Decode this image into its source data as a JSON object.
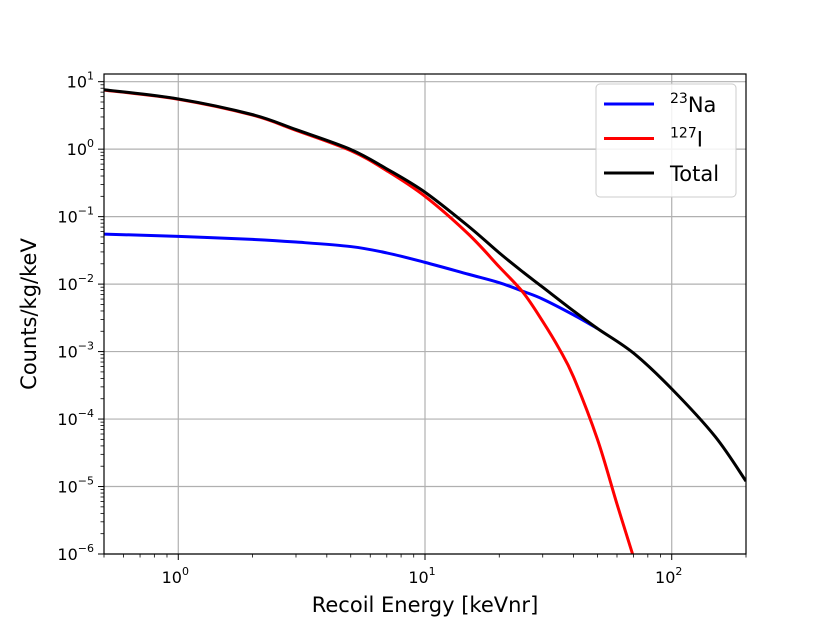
{
  "chart_data": {
    "type": "line",
    "title": "",
    "xlabel": "Recoil Energy [keVnr]",
    "ylabel": "Counts/kg/keV",
    "xscale": "log",
    "yscale": "log",
    "xlim": [
      0.5,
      200
    ],
    "ylim": [
      1e-06,
      13
    ],
    "grid": true,
    "legend_position": "top-right",
    "x_major_ticks": [
      {
        "value": 1,
        "base": "10",
        "exp": "0"
      },
      {
        "value": 10,
        "base": "10",
        "exp": "1"
      },
      {
        "value": 100,
        "base": "10",
        "exp": "2"
      }
    ],
    "y_major_ticks": [
      {
        "value": 10,
        "base": "10",
        "exp": "1"
      },
      {
        "value": 1,
        "base": "10",
        "exp": "0"
      },
      {
        "value": 0.1,
        "base": "10",
        "exp": "−1"
      },
      {
        "value": 0.01,
        "base": "10",
        "exp": "−2"
      },
      {
        "value": 0.001,
        "base": "10",
        "exp": "−3"
      },
      {
        "value": 0.0001,
        "base": "10",
        "exp": "−4"
      },
      {
        "value": 1e-05,
        "base": "10",
        "exp": "−5"
      },
      {
        "value": 1e-06,
        "base": "10",
        "exp": "−6"
      }
    ],
    "series": [
      {
        "key": "na",
        "name_sup": "23",
        "name_main": "Na",
        "color": "#0000ff",
        "x": [
          0.5,
          1,
          2,
          3,
          5,
          7,
          10,
          15,
          20,
          25,
          30,
          40,
          50
        ],
        "y": [
          0.055,
          0.051,
          0.046,
          0.042,
          0.036,
          0.029,
          0.021,
          0.014,
          0.0105,
          0.0078,
          0.006,
          0.0035,
          0.0022
        ]
      },
      {
        "key": "i",
        "name_sup": "127",
        "name_main": "I",
        "color": "#ff0000",
        "x": [
          0.5,
          1,
          2,
          3,
          5,
          7,
          10,
          15,
          20,
          25,
          30,
          35,
          40,
          50,
          60,
          70
        ],
        "y": [
          7.5,
          5.5,
          3.2,
          1.9,
          0.95,
          0.48,
          0.2,
          0.055,
          0.018,
          0.0075,
          0.0028,
          0.0011,
          0.00042,
          5e-05,
          5.5e-06,
          9e-07
        ]
      },
      {
        "key": "total",
        "name_sup": "",
        "name_main": "Total",
        "color": "#000000",
        "x": [
          0.5,
          1,
          2,
          3,
          5,
          7,
          10,
          15,
          20,
          25,
          30,
          40,
          50,
          70,
          100,
          150,
          200
        ],
        "y": [
          7.6,
          5.55,
          3.25,
          1.95,
          0.99,
          0.51,
          0.23,
          0.072,
          0.029,
          0.015,
          0.009,
          0.004,
          0.0022,
          0.00095,
          0.00028,
          5.5e-05,
          1.2e-05
        ]
      }
    ]
  }
}
